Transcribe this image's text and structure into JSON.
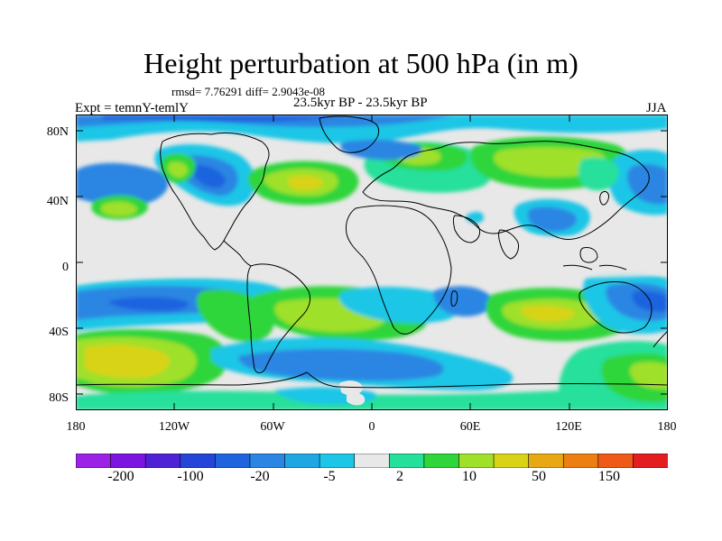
{
  "title": "Height perturbation at 500 hPa (in m)",
  "stats_line": "rmsd= 7.76291 diff= 2.9043e-08",
  "period": "23.5kyr BP - 23.5kyr BP",
  "experiment": "Expt = temnY-temlY",
  "season": "JJA",
  "lat_ticks": [
    "80N",
    "40N",
    "0",
    "40S",
    "80S"
  ],
  "lon_ticks": [
    "180",
    "120W",
    "60W",
    "0",
    "60E",
    "120E",
    "180"
  ],
  "colorbar": {
    "colors": [
      "#9b22e6",
      "#7a16e0",
      "#5022d6",
      "#2545d8",
      "#1f63df",
      "#2a86e2",
      "#1ea7e2",
      "#1cc6e6",
      "#e8e8e8",
      "#25e09b",
      "#2fd53a",
      "#9fe02a",
      "#d8d317",
      "#e7a814",
      "#ed7f12",
      "#ef5a18",
      "#e41e1e"
    ],
    "labels": [
      "-200",
      "-100",
      "-20",
      "-5",
      "2",
      "10",
      "50",
      "150"
    ]
  }
}
